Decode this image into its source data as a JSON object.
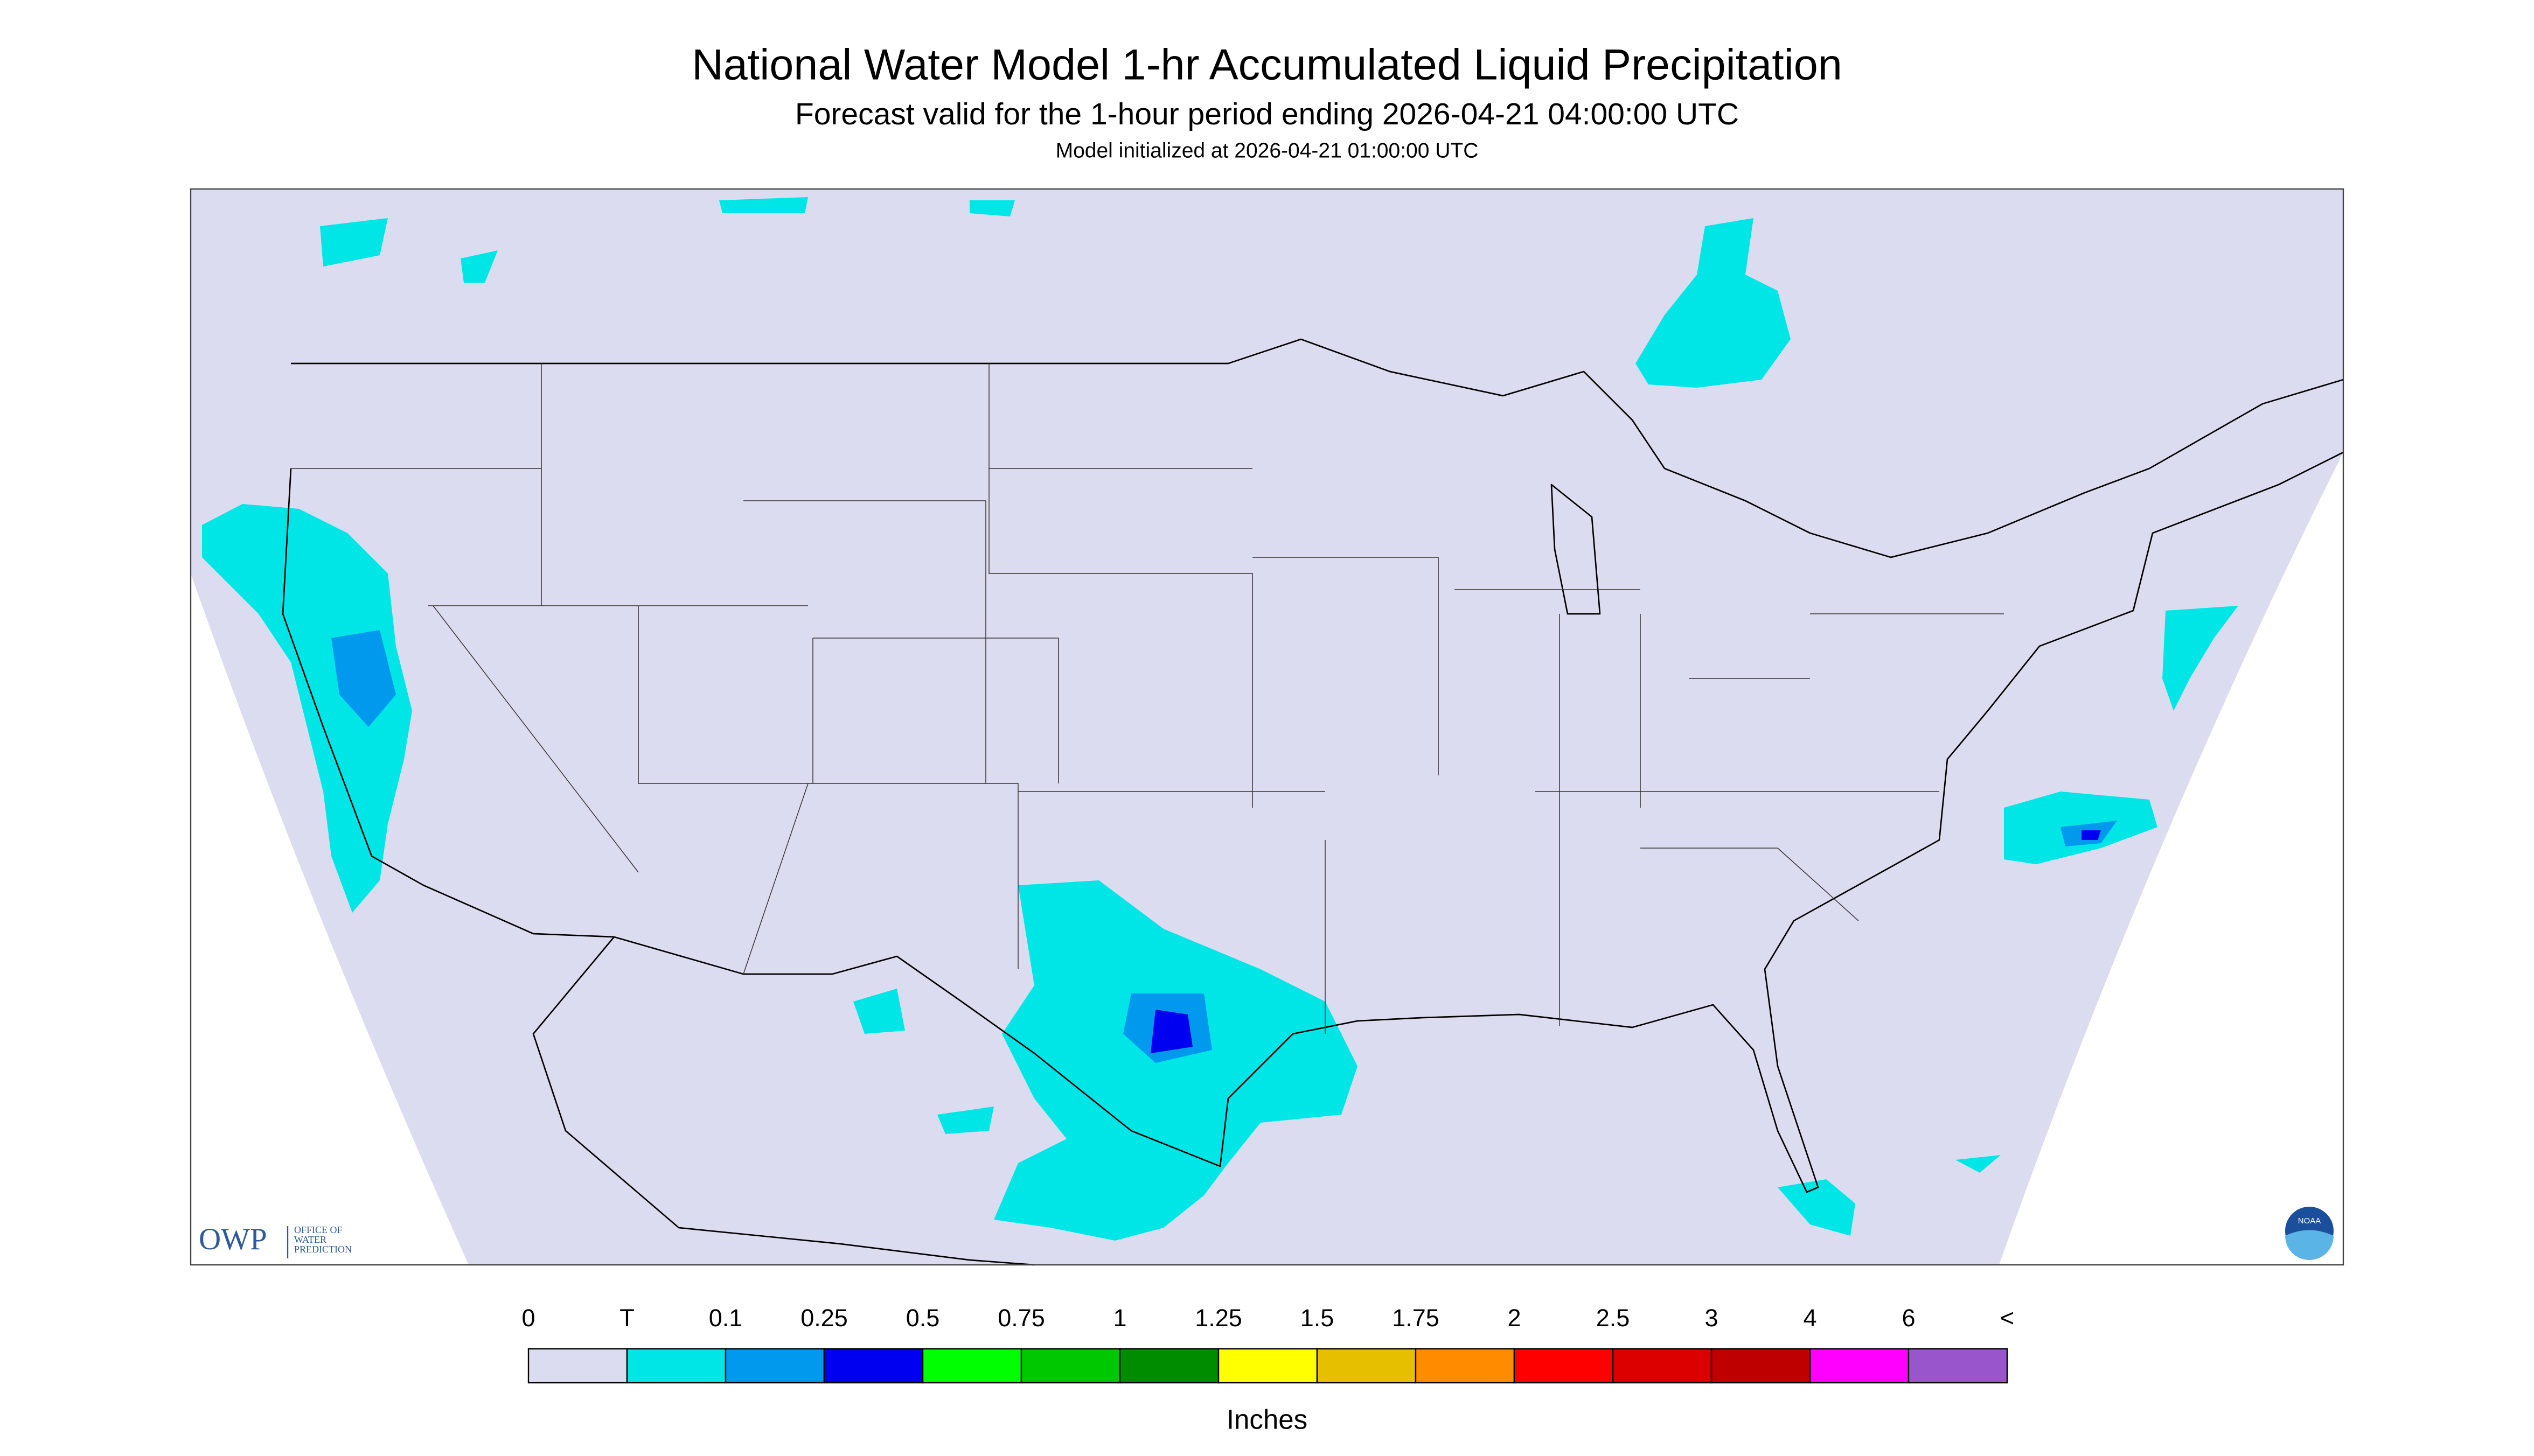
{
  "header": {
    "title": "National Water Model 1-hr Accumulated Liquid Precipitation",
    "subtitle": "Forecast valid for the 1-hour period ending 2026-04-21 04:00:00 UTC",
    "init": "Model initialized at 2026-04-21 01:00:00 UTC"
  },
  "legend": {
    "labels": [
      "0",
      "T",
      "0.1",
      "0.25",
      "0.5",
      "0.75",
      "1",
      "1.25",
      "1.5",
      "1.75",
      "2",
      "2.5",
      "3",
      "4",
      "6",
      "<"
    ],
    "colors": [
      "#dcdcf0",
      "#00e6e6",
      "#0099ee",
      "#0000f0",
      "#00ff00",
      "#00c800",
      "#008c00",
      "#ffff00",
      "#e6c000",
      "#ff8c00",
      "#ff0000",
      "#dc0000",
      "#be0000",
      "#ff00ff",
      "#9955cc"
    ],
    "unit": "Inches"
  },
  "logo": {
    "abbr": "OWP",
    "lines": [
      "OFFICE OF",
      "WATER",
      "PREDICTION"
    ]
  },
  "badge": "NOAA"
}
